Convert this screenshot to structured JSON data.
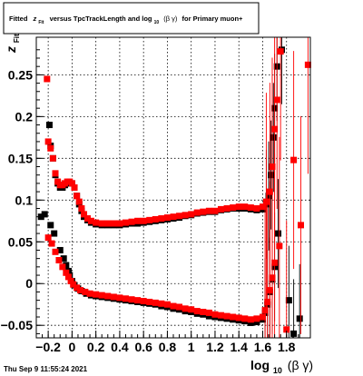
{
  "title": {
    "prefix": "Fitted",
    "z_main": "z",
    "z_sub": "Fit",
    "middle": "versus TpcTrackLength and log",
    "log_sub": "10",
    "beta_gamma": "(β γ)",
    "suffix": "for Primary muon+"
  },
  "ylabel": {
    "main": "z",
    "sub": "Fit"
  },
  "xlabel": {
    "main": "log",
    "sub": "10",
    "rest": "(β γ)"
  },
  "footer": "Thu Sep  9 11:55:24 2021",
  "colors": {
    "series_black": "#000000",
    "series_red": "#ff0000",
    "background": "#ffffff",
    "axis": "#000000"
  },
  "chart_data": {
    "type": "scatter",
    "title": "Fitted z_Fit versus TpcTrackLength and log10(β γ) for Primary muon+",
    "xlabel": "log10(β γ)",
    "ylabel": "z_Fit",
    "xlim": [
      -0.3,
      2.0
    ],
    "ylim": [
      -0.065,
      0.295
    ],
    "grid": true,
    "x_ticks": [
      -0.2,
      0,
      0.2,
      0.4,
      0.6,
      0.8,
      1,
      1.2,
      1.4,
      1.6,
      1.8
    ],
    "x_tick_labels": [
      "−0.2",
      "0",
      "0.2",
      "0.4",
      "0.6",
      "0.8",
      "1",
      "1.2",
      "1.4",
      "1.6",
      "1.8"
    ],
    "y_ticks": [
      -0.05,
      0,
      0.05,
      0.1,
      0.15,
      0.2,
      0.25
    ],
    "y_tick_labels": [
      "−0.05",
      "0",
      "0.05",
      "0.1",
      "0.15",
      "0.2",
      "0.25"
    ],
    "series": [
      {
        "color": "#000000",
        "marker": "square",
        "points": [
          [
            -0.19,
            0.19
          ],
          [
            -0.18,
            0.165
          ],
          [
            -0.16,
            0.15
          ],
          [
            -0.14,
            0.13
          ],
          [
            -0.12,
            0.12
          ],
          [
            -0.1,
            0.115
          ],
          [
            -0.08,
            0.115
          ],
          [
            -0.06,
            0.118
          ],
          [
            -0.04,
            0.12
          ],
          [
            -0.02,
            0.12
          ],
          [
            0.0,
            0.12
          ],
          [
            0.02,
            0.115
          ],
          [
            0.04,
            0.105
          ],
          [
            0.06,
            0.095
          ],
          [
            0.08,
            0.087
          ],
          [
            0.1,
            0.08
          ],
          [
            0.13,
            0.076
          ],
          [
            0.16,
            0.073
          ],
          [
            0.2,
            0.071
          ],
          [
            0.25,
            0.07
          ],
          [
            0.3,
            0.07
          ],
          [
            0.35,
            0.07
          ],
          [
            0.4,
            0.07
          ],
          [
            0.45,
            0.071
          ],
          [
            0.5,
            0.072
          ],
          [
            0.55,
            0.072
          ],
          [
            0.6,
            0.073
          ],
          [
            0.65,
            0.074
          ],
          [
            0.7,
            0.075
          ],
          [
            0.75,
            0.076
          ],
          [
            0.8,
            0.077
          ],
          [
            0.85,
            0.078
          ],
          [
            0.9,
            0.079
          ],
          [
            0.95,
            0.081
          ],
          [
            1.0,
            0.082
          ],
          [
            1.05,
            0.084
          ],
          [
            1.1,
            0.085
          ],
          [
            1.15,
            0.086
          ],
          [
            1.2,
            0.086
          ],
          [
            1.25,
            0.088
          ],
          [
            1.3,
            0.089
          ],
          [
            1.35,
            0.09
          ],
          [
            1.4,
            0.09
          ],
          [
            1.45,
            0.09
          ],
          [
            1.5,
            0.089
          ],
          [
            1.55,
            0.088
          ],
          [
            1.6,
            0.089
          ],
          [
            1.63,
            0.095
          ],
          [
            1.65,
            0.105
          ],
          [
            1.67,
            0.13
          ],
          [
            1.69,
            0.175
          ],
          [
            1.7,
            0.21
          ],
          [
            1.72,
            0.26
          ],
          [
            1.76,
            0.28
          ],
          [
            1.82,
            -0.02
          ],
          [
            1.86,
            -0.06
          ],
          [
            1.91,
            -0.042
          ],
          [
            -0.26,
            0.08
          ],
          [
            -0.23,
            0.083
          ],
          [
            -0.18,
            0.07
          ],
          [
            -0.15,
            0.06
          ],
          [
            -0.1,
            0.04
          ],
          [
            -0.07,
            0.03
          ],
          [
            -0.05,
            0.022
          ],
          [
            -0.03,
            0.015
          ],
          [
            -0.02,
            0.01
          ],
          [
            0.0,
            0.003
          ],
          [
            0.02,
            -0.002
          ],
          [
            0.05,
            -0.006
          ],
          [
            0.08,
            -0.009
          ],
          [
            0.12,
            -0.012
          ],
          [
            0.16,
            -0.014
          ],
          [
            0.2,
            -0.015
          ],
          [
            0.25,
            -0.016
          ],
          [
            0.3,
            -0.017
          ],
          [
            0.35,
            -0.018
          ],
          [
            0.4,
            -0.019
          ],
          [
            0.45,
            -0.02
          ],
          [
            0.5,
            -0.021
          ],
          [
            0.55,
            -0.022
          ],
          [
            0.6,
            -0.023
          ],
          [
            0.65,
            -0.024
          ],
          [
            0.7,
            -0.025
          ],
          [
            0.75,
            -0.027
          ],
          [
            0.8,
            -0.028
          ],
          [
            0.85,
            -0.03
          ],
          [
            0.9,
            -0.031
          ],
          [
            0.95,
            -0.033
          ],
          [
            1.0,
            -0.034
          ],
          [
            1.05,
            -0.036
          ],
          [
            1.1,
            -0.037
          ],
          [
            1.15,
            -0.039
          ],
          [
            1.2,
            -0.04
          ],
          [
            1.25,
            -0.041
          ],
          [
            1.3,
            -0.042
          ],
          [
            1.35,
            -0.043
          ],
          [
            1.4,
            -0.044
          ],
          [
            1.45,
            -0.045
          ],
          [
            1.5,
            -0.047
          ],
          [
            1.55,
            -0.046
          ],
          [
            1.6,
            -0.043
          ],
          [
            1.62,
            -0.035
          ],
          [
            1.64,
            -0.025
          ],
          [
            1.66,
            -0.01
          ],
          [
            1.68,
            0.005
          ],
          [
            1.7,
            0.02
          ],
          [
            1.73,
            0.06
          ]
        ]
      },
      {
        "color": "#ff0000",
        "marker": "square",
        "points": [
          [
            -0.21,
            0.245
          ],
          [
            -0.2,
            0.17
          ],
          [
            -0.18,
            0.162
          ],
          [
            -0.16,
            0.15
          ],
          [
            -0.14,
            0.132
          ],
          [
            -0.12,
            0.122
          ],
          [
            -0.1,
            0.118
          ],
          [
            -0.08,
            0.118
          ],
          [
            -0.06,
            0.12
          ],
          [
            -0.04,
            0.122
          ],
          [
            -0.02,
            0.122
          ],
          [
            0.0,
            0.12
          ],
          [
            0.02,
            0.115
          ],
          [
            0.04,
            0.105
          ],
          [
            0.06,
            0.098
          ],
          [
            0.08,
            0.09
          ],
          [
            0.1,
            0.083
          ],
          [
            0.13,
            0.078
          ],
          [
            0.16,
            0.075
          ],
          [
            0.2,
            0.073
          ],
          [
            0.25,
            0.072
          ],
          [
            0.3,
            0.072
          ],
          [
            0.35,
            0.072
          ],
          [
            0.4,
            0.072
          ],
          [
            0.45,
            0.073
          ],
          [
            0.5,
            0.074
          ],
          [
            0.55,
            0.075
          ],
          [
            0.6,
            0.075
          ],
          [
            0.65,
            0.076
          ],
          [
            0.7,
            0.077
          ],
          [
            0.75,
            0.078
          ],
          [
            0.8,
            0.079
          ],
          [
            0.85,
            0.08
          ],
          [
            0.9,
            0.081
          ],
          [
            0.95,
            0.082
          ],
          [
            1.0,
            0.083
          ],
          [
            1.05,
            0.085
          ],
          [
            1.1,
            0.086
          ],
          [
            1.15,
            0.087
          ],
          [
            1.2,
            0.087
          ],
          [
            1.25,
            0.089
          ],
          [
            1.3,
            0.09
          ],
          [
            1.35,
            0.091
          ],
          [
            1.4,
            0.092
          ],
          [
            1.45,
            0.092
          ],
          [
            1.5,
            0.091
          ],
          [
            1.55,
            0.09
          ],
          [
            1.6,
            0.092
          ],
          [
            1.63,
            0.098
          ],
          [
            1.66,
            0.11
          ],
          [
            1.68,
            0.14
          ],
          [
            1.7,
            0.185
          ],
          [
            1.72,
            0.22
          ],
          [
            1.75,
            0.278
          ],
          [
            1.8,
            -0.055
          ],
          [
            1.86,
            0.148
          ],
          [
            1.92,
            0.07
          ],
          [
            1.98,
            0.262
          ],
          [
            -0.2,
            0.055
          ],
          [
            -0.17,
            0.048
          ],
          [
            -0.14,
            0.038
          ],
          [
            -0.11,
            0.028
          ],
          [
            -0.08,
            0.02
          ],
          [
            -0.05,
            0.013
          ],
          [
            -0.03,
            0.008
          ],
          [
            -0.01,
            0.003
          ],
          [
            0.01,
            -0.001
          ],
          [
            0.04,
            -0.005
          ],
          [
            0.07,
            -0.008
          ],
          [
            0.11,
            -0.01
          ],
          [
            0.15,
            -0.012
          ],
          [
            0.2,
            -0.013
          ],
          [
            0.25,
            -0.014
          ],
          [
            0.3,
            -0.015
          ],
          [
            0.35,
            -0.016
          ],
          [
            0.4,
            -0.017
          ],
          [
            0.45,
            -0.018
          ],
          [
            0.5,
            -0.019
          ],
          [
            0.55,
            -0.02
          ],
          [
            0.6,
            -0.021
          ],
          [
            0.65,
            -0.022
          ],
          [
            0.7,
            -0.023
          ],
          [
            0.75,
            -0.024
          ],
          [
            0.8,
            -0.025
          ],
          [
            0.85,
            -0.027
          ],
          [
            0.9,
            -0.028
          ],
          [
            0.95,
            -0.03
          ],
          [
            1.0,
            -0.031
          ],
          [
            1.05,
            -0.033
          ],
          [
            1.1,
            -0.034
          ],
          [
            1.15,
            -0.035
          ],
          [
            1.2,
            -0.037
          ],
          [
            1.25,
            -0.038
          ],
          [
            1.3,
            -0.039
          ],
          [
            1.35,
            -0.04
          ],
          [
            1.4,
            -0.041
          ],
          [
            1.45,
            -0.042
          ],
          [
            1.5,
            -0.043
          ],
          [
            1.55,
            -0.042
          ],
          [
            1.6,
            -0.04
          ],
          [
            1.62,
            -0.032
          ],
          [
            1.64,
            -0.022
          ],
          [
            1.66,
            -0.008
          ],
          [
            1.68,
            0.007
          ],
          [
            1.7,
            0.025
          ],
          [
            1.74,
            0.045
          ]
        ]
      }
    ]
  }
}
